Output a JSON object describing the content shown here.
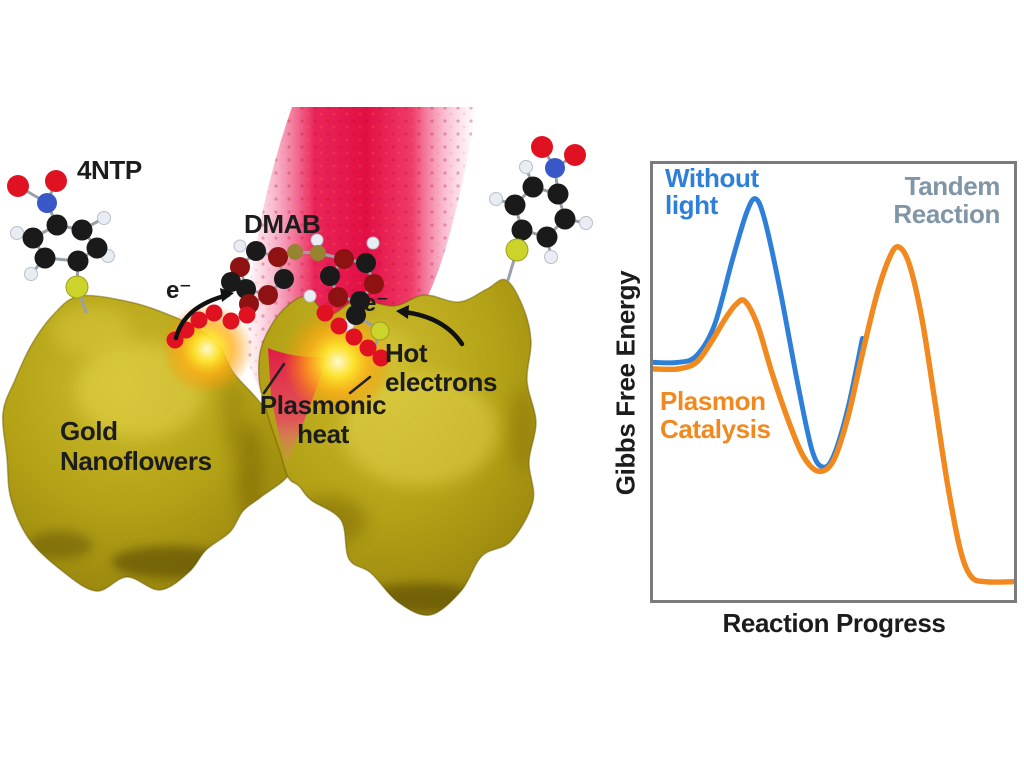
{
  "figure": {
    "left_panel": {
      "labels": {
        "molecule_reactant": "4NTP",
        "molecule_product": "DMAB",
        "electron_left": "e⁻",
        "electron_right": "e⁻",
        "hot_electrons": "Hot\nelectrons",
        "plasmonic_heat": "Plasmonic\nheat",
        "gold_nanoflowers": "Gold\nNanoflowers"
      }
    },
    "palette": {
      "carbon": "#1a1a1a",
      "oxygen": "#e01222",
      "nitrogen": "#3a57c8",
      "hydrogen": "#e9edf3",
      "sulfur": "#ccd32b",
      "reduced-carbon": "#8f1212",
      "azo-nitrogen": "#968430",
      "electron-dot": "#e01222",
      "gold": "#b5a317",
      "laser": "#e20e44",
      "hot-spot": "#ffe42c",
      "label-text": "#1c1c1c",
      "chart-border": "#7b7b7b"
    }
  },
  "chart": {
    "ylabel": "Gibbs Free Energy",
    "xlabel": "Reaction Progress",
    "annotations": {
      "without_light": {
        "text": "Without\nlight",
        "color": "#2e7fd8"
      },
      "tandem_reaction": {
        "text": "Tandem\nReaction",
        "color": "#8096a6"
      },
      "plasmon_catalysis": {
        "text": "Plasmon\nCatalysis",
        "color": "#f1891f"
      }
    }
  },
  "chart_data": {
    "type": "line",
    "title": "",
    "xlabel": "Reaction Progress",
    "ylabel": "Gibbs Free Energy",
    "grid": false,
    "axes_note": "qualitative energy diagram; no tick labels shown; x and y normalized 0-1",
    "annotations": [
      {
        "text": "Without light",
        "color": "#2e7fd8",
        "position": "upper left, above blue barrier"
      },
      {
        "text": "Tandem Reaction",
        "color": "#8096a6",
        "position": "upper right, above second barrier"
      },
      {
        "text": "Plasmon Catalysis",
        "color": "#f1891f",
        "position": "left, below reactant plateau"
      }
    ],
    "series": [
      {
        "name": "Without light",
        "color": "#2e7fd8",
        "width": 5,
        "points": [
          [
            0,
            0.545
          ],
          [
            0.07,
            0.545
          ],
          [
            0.12,
            0.56
          ],
          [
            0.17,
            0.63
          ],
          [
            0.22,
            0.78
          ],
          [
            0.26,
            0.89
          ],
          [
            0.285,
            0.92
          ],
          [
            0.31,
            0.87
          ],
          [
            0.35,
            0.72
          ],
          [
            0.4,
            0.5
          ],
          [
            0.44,
            0.345
          ],
          [
            0.47,
            0.305
          ],
          [
            0.5,
            0.33
          ],
          [
            0.54,
            0.44
          ],
          [
            0.58,
            0.6
          ]
        ]
      },
      {
        "name": "Plasmon Catalysis (tandem reaction, lowered first barrier)",
        "color": "#f1891f",
        "width": 5.5,
        "points": [
          [
            0,
            0.53
          ],
          [
            0.07,
            0.53
          ],
          [
            0.12,
            0.545
          ],
          [
            0.16,
            0.59
          ],
          [
            0.2,
            0.645
          ],
          [
            0.23,
            0.678
          ],
          [
            0.255,
            0.685
          ],
          [
            0.29,
            0.63
          ],
          [
            0.33,
            0.52
          ],
          [
            0.38,
            0.4
          ],
          [
            0.42,
            0.325
          ],
          [
            0.46,
            0.295
          ],
          [
            0.5,
            0.32
          ],
          [
            0.54,
            0.42
          ],
          [
            0.58,
            0.565
          ],
          [
            0.62,
            0.7
          ],
          [
            0.655,
            0.785
          ],
          [
            0.68,
            0.81
          ],
          [
            0.71,
            0.77
          ],
          [
            0.745,
            0.645
          ],
          [
            0.78,
            0.46
          ],
          [
            0.815,
            0.27
          ],
          [
            0.85,
            0.12
          ],
          [
            0.88,
            0.055
          ],
          [
            0.92,
            0.042
          ],
          [
            1,
            0.042
          ]
        ]
      }
    ]
  }
}
